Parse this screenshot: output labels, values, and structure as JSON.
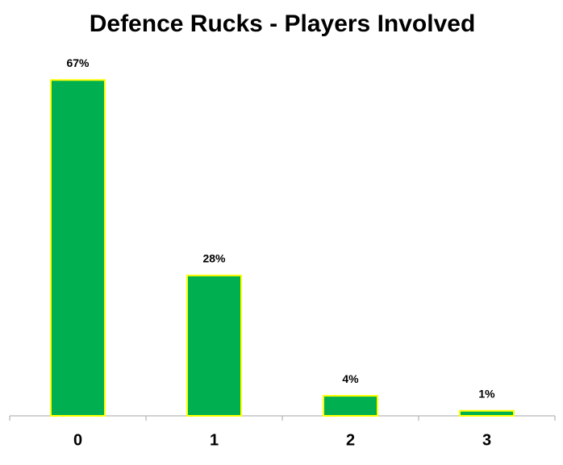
{
  "chart_data": {
    "type": "bar",
    "title": "Defence Rucks - Players Involved",
    "categories": [
      "0",
      "1",
      "2",
      "3"
    ],
    "values": [
      67,
      28,
      4,
      1
    ],
    "value_labels": [
      "67%",
      "28%",
      "4%",
      "1%"
    ],
    "color": "#00b050",
    "edge_color": "#ffff00"
  }
}
